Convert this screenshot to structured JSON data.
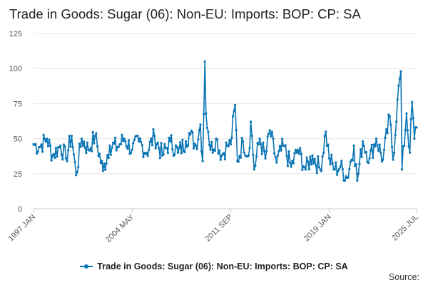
{
  "chart_data": {
    "type": "line",
    "title": "Trade in Goods: Sugar (06): Non-EU: Imports: BOP: CP: SA",
    "xlabel": "",
    "ylabel": "",
    "ylim": [
      0,
      125
    ],
    "y_ticks": [
      "0",
      "25",
      "50",
      "75",
      "100",
      "125"
    ],
    "x_range": [
      "1997-01",
      "2025-07"
    ],
    "x_tick_labels": [
      "1997 JAN",
      "2004 MAY",
      "2011 SEP",
      "2019 JAN",
      "2025 JUL"
    ],
    "x_tick_dates": [
      "1997-01",
      "2004-05",
      "2011-09",
      "2019-01",
      "2025-07"
    ],
    "grid": "horizontal",
    "legend_position": "bottom",
    "color": "#0a75b5",
    "series": [
      {
        "name": "Trade in Goods: Sugar (06): Non-EU: Imports: BOP: CP: SA",
        "keypoints": [
          [
            "1997-01",
            46
          ],
          [
            "1997-06",
            44
          ],
          [
            "1998-01",
            50
          ],
          [
            "1998-06",
            38
          ],
          [
            "1999-01",
            45
          ],
          [
            "1999-06",
            36
          ],
          [
            "1999-11",
            52
          ],
          [
            "2000-03",
            24
          ],
          [
            "2000-08",
            50
          ],
          [
            "2001-02",
            42
          ],
          [
            "2001-08",
            52
          ],
          [
            "2002-03",
            27
          ],
          [
            "2002-09",
            45
          ],
          [
            "2003-04",
            44
          ],
          [
            "2003-10",
            50
          ],
          [
            "2004-05",
            42
          ],
          [
            "2004-11",
            48
          ],
          [
            "2005-06",
            40
          ],
          [
            "2006-01",
            52
          ],
          [
            "2006-08",
            38
          ],
          [
            "2007-03",
            48
          ],
          [
            "2007-10",
            40
          ],
          [
            "2008-05",
            48
          ],
          [
            "2008-08",
            54
          ],
          [
            "2009-02",
            45
          ],
          [
            "2009-06",
            60
          ],
          [
            "2009-08",
            34
          ],
          [
            "2009-10",
            105
          ],
          [
            "2009-11",
            68
          ],
          [
            "2010-01",
            55
          ],
          [
            "2010-03",
            42
          ],
          [
            "2010-08",
            50
          ],
          [
            "2011-01",
            38
          ],
          [
            "2011-06",
            45
          ],
          [
            "2011-09",
            46
          ],
          [
            "2012-01",
            74
          ],
          [
            "2012-03",
            34
          ],
          [
            "2012-08",
            48
          ],
          [
            "2013-01",
            38
          ],
          [
            "2013-03",
            62
          ],
          [
            "2013-06",
            28
          ],
          [
            "2013-11",
            50
          ],
          [
            "2014-04",
            36
          ],
          [
            "2014-08",
            56
          ],
          [
            "2015-02",
            33
          ],
          [
            "2015-08",
            45
          ],
          [
            "2016-03",
            30
          ],
          [
            "2016-09",
            42
          ],
          [
            "2017-04",
            28
          ],
          [
            "2017-10",
            38
          ],
          [
            "2018-05",
            28
          ],
          [
            "2018-10",
            55
          ],
          [
            "2019-01",
            36
          ],
          [
            "2019-06",
            28
          ],
          [
            "2019-11",
            30
          ],
          [
            "2020-05",
            22
          ],
          [
            "2020-11",
            45
          ],
          [
            "2021-02",
            20
          ],
          [
            "2021-07",
            48
          ],
          [
            "2022-01",
            36
          ],
          [
            "2022-07",
            50
          ],
          [
            "2023-01",
            35
          ],
          [
            "2023-07",
            66
          ],
          [
            "2023-10",
            35
          ],
          [
            "2024-02",
            78
          ],
          [
            "2024-05",
            98
          ],
          [
            "2024-06",
            28
          ],
          [
            "2024-10",
            68
          ],
          [
            "2025-01",
            40
          ],
          [
            "2025-03",
            76
          ],
          [
            "2025-05",
            50
          ],
          [
            "2025-07",
            58
          ]
        ]
      }
    ]
  },
  "legend": {
    "label": "Trade in Goods: Sugar (06): Non-EU: Imports: BOP: CP: SA"
  },
  "source": {
    "label": "Source:"
  }
}
